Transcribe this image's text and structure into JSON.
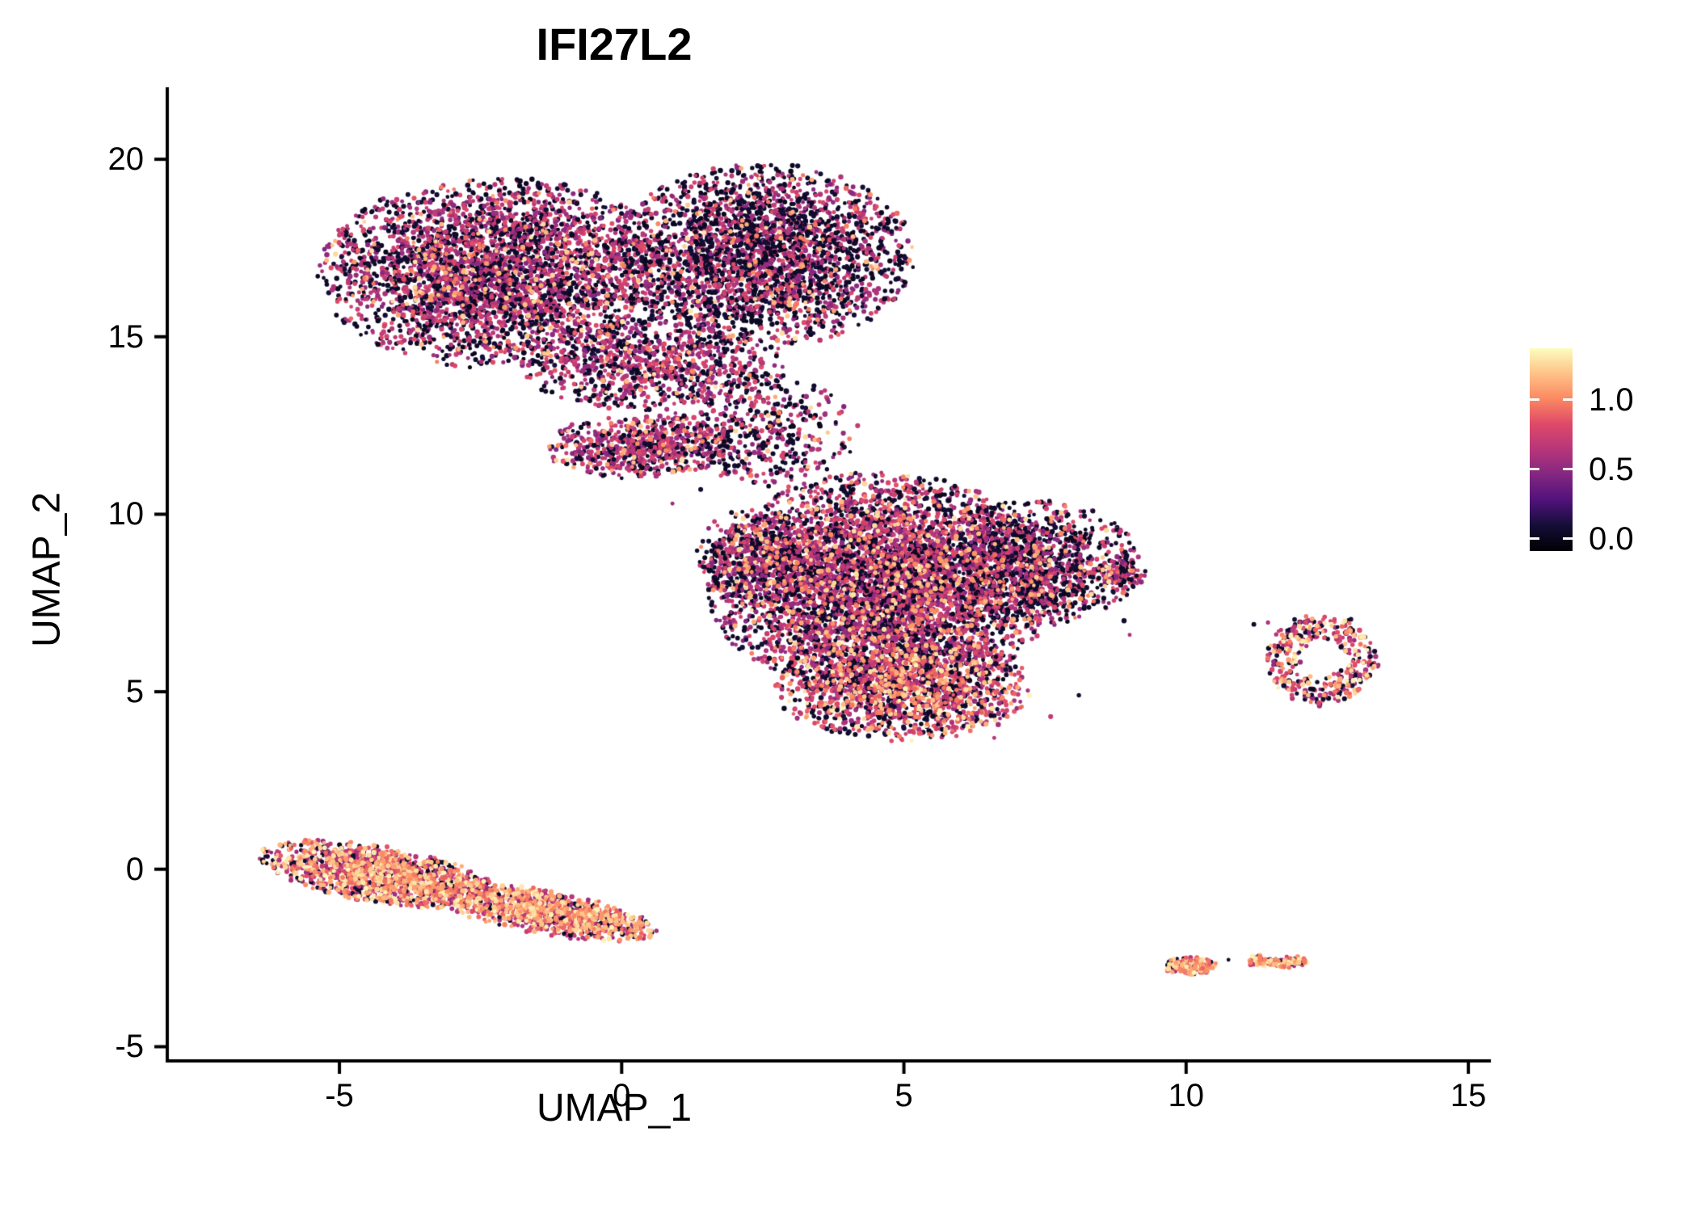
{
  "chart_data": {
    "type": "scatter",
    "title": "IFI27L2",
    "xlabel": "UMAP_1",
    "ylabel": "UMAP_2",
    "xlim": [
      -8.05,
      15.4
    ],
    "ylim": [
      -5.4,
      21.3
    ],
    "grid": false,
    "legend_position": "right",
    "background": "#ffffff",
    "axis_color": "#000000",
    "text_color": "#000000",
    "xticks": [
      {
        "value": -5,
        "label": "-5"
      },
      {
        "value": 0,
        "label": "0"
      },
      {
        "value": 5,
        "label": "5"
      },
      {
        "value": 10,
        "label": "10"
      },
      {
        "value": 15,
        "label": "15"
      }
    ],
    "yticks": [
      {
        "value": -5,
        "label": "-5"
      },
      {
        "value": 0,
        "label": "0"
      },
      {
        "value": 5,
        "label": "5"
      },
      {
        "value": 10,
        "label": "10"
      },
      {
        "value": 15,
        "label": "15"
      },
      {
        "value": 20,
        "label": "20"
      }
    ],
    "colormap": "magma",
    "colormap_stops": [
      {
        "t": 0.0,
        "color": "#000004"
      },
      {
        "t": 0.125,
        "color": "#140e36"
      },
      {
        "t": 0.25,
        "color": "#50127b"
      },
      {
        "t": 0.375,
        "color": "#822681"
      },
      {
        "t": 0.5,
        "color": "#b63679"
      },
      {
        "t": 0.625,
        "color": "#de4968"
      },
      {
        "t": 0.75,
        "color": "#fb8861"
      },
      {
        "t": 0.875,
        "color": "#fec287"
      },
      {
        "t": 1.0,
        "color": "#fcfdbf"
      }
    ],
    "colorbar": {
      "domain": [
        -0.09,
        1.37
      ],
      "ticks": [
        {
          "value": 1.0,
          "label": "1.0"
        },
        {
          "value": 0.5,
          "label": "0.5"
        },
        {
          "value": 0.0,
          "label": "0.0"
        }
      ]
    },
    "clusters": [
      {
        "name": "upper-cluster-left-lobe",
        "cx": -2.2,
        "cy": 16.8,
        "rx": 3.2,
        "ry": 2.7,
        "angle": 0,
        "count": 3600,
        "values": {
          "fracZero": 0.38,
          "fracMid": 0.56,
          "fracHigh": 0.06,
          "midRange": [
            0.45,
            0.85
          ],
          "highRange": [
            0.9,
            1.3
          ]
        }
      },
      {
        "name": "upper-cluster-right-lobe",
        "cx": 2.5,
        "cy": 17.3,
        "rx": 2.7,
        "ry": 2.6,
        "angle": 0,
        "count": 2800,
        "values": {
          "fracZero": 0.5,
          "fracMid": 0.46,
          "fracHigh": 0.04,
          "midRange": [
            0.45,
            0.85
          ],
          "highRange": [
            0.9,
            1.3
          ]
        }
      },
      {
        "name": "upper-cluster-lower-edge",
        "cx": 0.6,
        "cy": 14.2,
        "rx": 2.4,
        "ry": 1.3,
        "angle": 0,
        "count": 900,
        "values": {
          "fracZero": 0.4,
          "fracMid": 0.55,
          "fracHigh": 0.05,
          "midRange": [
            0.45,
            0.85
          ],
          "highRange": [
            0.9,
            1.3
          ]
        }
      },
      {
        "name": "bridge-dense-strip",
        "cx": 0.3,
        "cy": 11.9,
        "rx": 1.7,
        "ry": 0.9,
        "angle": 0,
        "count": 650,
        "values": {
          "fracZero": 0.25,
          "fracMid": 0.65,
          "fracHigh": 0.1,
          "midRange": [
            0.45,
            0.85
          ],
          "highRange": [
            0.9,
            1.3
          ]
        }
      },
      {
        "name": "bridge-sparse",
        "cx": 2.5,
        "cy": 12.3,
        "rx": 1.7,
        "ry": 1.6,
        "angle": 0,
        "count": 450,
        "values": {
          "fracZero": 0.45,
          "fracMid": 0.5,
          "fracHigh": 0.05,
          "midRange": [
            0.45,
            0.85
          ],
          "highRange": [
            0.9,
            1.3
          ]
        }
      },
      {
        "name": "middle-cluster-main",
        "cx": 4.6,
        "cy": 8.0,
        "rx": 3.1,
        "ry": 3.2,
        "angle": 0,
        "count": 5200,
        "values": {
          "fracZero": 0.33,
          "fracMid": 0.57,
          "fracHigh": 0.1,
          "midRange": [
            0.45,
            0.85
          ],
          "highRange": [
            0.9,
            1.3
          ]
        }
      },
      {
        "name": "middle-cluster-right",
        "cx": 7.3,
        "cy": 8.6,
        "rx": 1.9,
        "ry": 1.8,
        "angle": 0,
        "count": 1200,
        "values": {
          "fracZero": 0.45,
          "fracMid": 0.48,
          "fracHigh": 0.07,
          "midRange": [
            0.45,
            0.85
          ],
          "highRange": [
            0.9,
            1.3
          ]
        }
      },
      {
        "name": "middle-cluster-bottom",
        "cx": 5.0,
        "cy": 5.1,
        "rx": 2.3,
        "ry": 1.5,
        "angle": 0,
        "count": 1500,
        "values": {
          "fracZero": 0.3,
          "fracMid": 0.5,
          "fracHigh": 0.2,
          "midRange": [
            0.5,
            0.9
          ],
          "highRange": [
            0.9,
            1.35
          ]
        }
      },
      {
        "name": "middle-cluster-left",
        "cx": 2.4,
        "cy": 8.8,
        "rx": 1.1,
        "ry": 1.4,
        "angle": 0,
        "count": 450,
        "values": {
          "fracZero": 0.35,
          "fracMid": 0.55,
          "fracHigh": 0.1,
          "midRange": [
            0.45,
            0.85
          ],
          "highRange": [
            0.9,
            1.3
          ]
        }
      },
      {
        "name": "middle-cluster-right-tip",
        "cx": 8.8,
        "cy": 8.3,
        "rx": 0.5,
        "ry": 0.45,
        "angle": 0,
        "count": 130,
        "values": {
          "fracZero": 0.35,
          "fracMid": 0.55,
          "fracHigh": 0.1,
          "midRange": [
            0.45,
            0.85
          ],
          "highRange": [
            0.9,
            1.3
          ]
        }
      },
      {
        "name": "right-ring-cluster",
        "cx": 12.4,
        "cy": 5.9,
        "rx": 0.95,
        "ry": 1.25,
        "angle": 0,
        "count": 380,
        "ring": true,
        "inner": 0.45,
        "values": {
          "fracZero": 0.25,
          "fracMid": 0.45,
          "fracHigh": 0.3,
          "midRange": [
            0.5,
            0.9
          ],
          "highRange": [
            0.9,
            1.35
          ]
        }
      },
      {
        "name": "lower-left-strip-a",
        "cx": -4.3,
        "cy": -0.15,
        "rx": 2.2,
        "ry": 0.8,
        "angle": -16,
        "count": 1400,
        "values": {
          "fracZero": 0.14,
          "fracMid": 0.45,
          "fracHigh": 0.41,
          "midRange": [
            0.5,
            0.9
          ],
          "highRange": [
            0.9,
            1.35
          ]
        }
      },
      {
        "name": "lower-left-strip-b",
        "cx": -1.4,
        "cy": -1.2,
        "rx": 2.1,
        "ry": 0.62,
        "angle": -16,
        "count": 1100,
        "values": {
          "fracZero": 0.12,
          "fracMid": 0.42,
          "fracHigh": 0.46,
          "midRange": [
            0.5,
            0.9
          ],
          "highRange": [
            0.9,
            1.35
          ]
        }
      },
      {
        "name": "bottom-right-cluster-a",
        "cx": 10.05,
        "cy": -2.72,
        "rx": 0.5,
        "ry": 0.28,
        "angle": 0,
        "count": 160,
        "values": {
          "fracZero": 0.2,
          "fracMid": 0.35,
          "fracHigh": 0.45,
          "midRange": [
            0.5,
            0.9
          ],
          "highRange": [
            0.9,
            1.35
          ]
        }
      },
      {
        "name": "bottom-right-cluster-b1",
        "cx": 11.3,
        "cy": -2.58,
        "rx": 0.22,
        "ry": 0.16,
        "angle": 0,
        "count": 55,
        "values": {
          "fracZero": 0.2,
          "fracMid": 0.35,
          "fracHigh": 0.45,
          "midRange": [
            0.5,
            0.9
          ],
          "highRange": [
            0.9,
            1.35
          ]
        }
      },
      {
        "name": "bottom-right-cluster-b2",
        "cx": 11.8,
        "cy": -2.62,
        "rx": 0.38,
        "ry": 0.18,
        "angle": 0,
        "count": 95,
        "values": {
          "fracZero": 0.2,
          "fracMid": 0.35,
          "fracHigh": 0.45,
          "midRange": [
            0.5,
            0.9
          ],
          "highRange": [
            0.9,
            1.35
          ]
        }
      }
    ],
    "outlier_points": [
      [
        6.6,
        3.7,
        0.65
      ],
      [
        9.05,
        8.2,
        0.4
      ],
      [
        11.2,
        6.9,
        0.05
      ],
      [
        11.45,
        6.95,
        0.6
      ],
      [
        10.75,
        -2.55,
        0.05
      ],
      [
        0.35,
        -1.8,
        0.9
      ],
      [
        8.9,
        7.0,
        0.05
      ],
      [
        9.0,
        6.6,
        0.6
      ],
      [
        7.6,
        4.3,
        0.7
      ],
      [
        8.1,
        4.9,
        0.05
      ],
      [
        0.9,
        10.3,
        0.55
      ],
      [
        1.4,
        10.7,
        0.05
      ]
    ]
  }
}
